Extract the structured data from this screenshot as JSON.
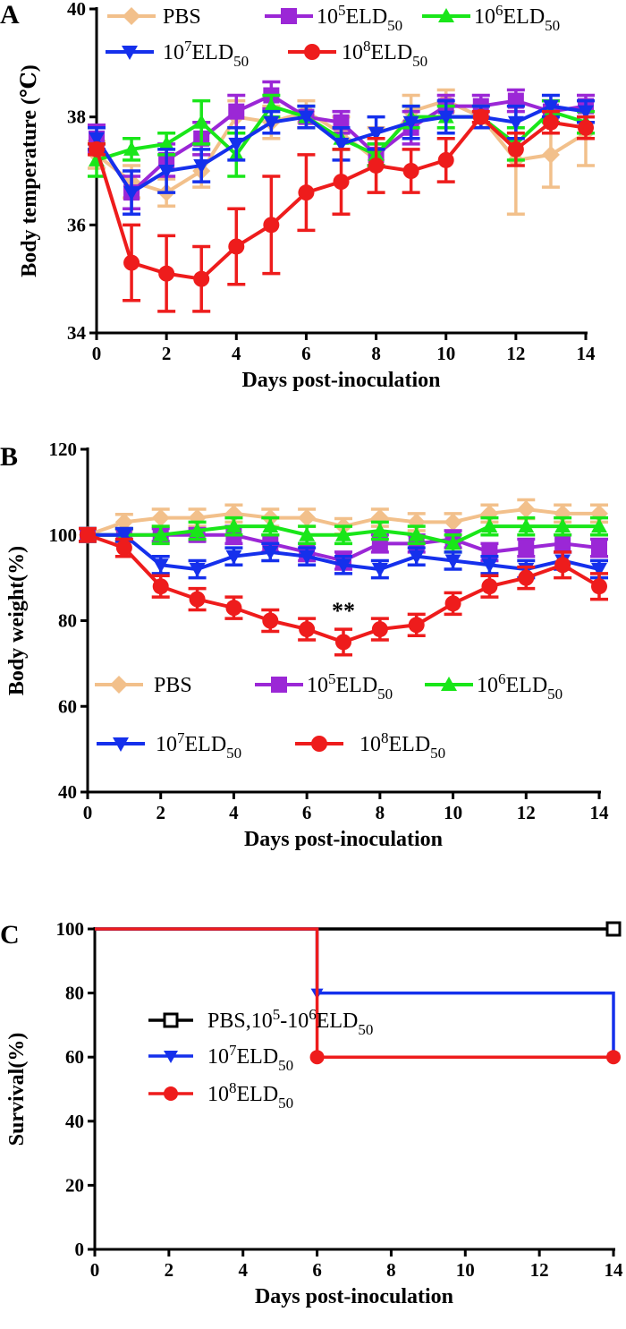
{
  "colors": {
    "PBS": "#f2c08b",
    "E5": "#9b27d6",
    "E6": "#19e619",
    "E7": "#1530ec",
    "E8": "#ee1c1c",
    "black": "#000000"
  },
  "series_labels": [
    {
      "key": "PBS",
      "pre": "PBS",
      "sup": "",
      "mid": "",
      "sub": ""
    },
    {
      "key": "E5",
      "pre": "10",
      "sup": "5",
      "mid": "ELD",
      "sub": "50"
    },
    {
      "key": "E6",
      "pre": "10",
      "sup": "6",
      "mid": "ELD",
      "sub": "50"
    },
    {
      "key": "E7",
      "pre": "10",
      "sup": "7",
      "mid": "ELD",
      "sub": "50"
    },
    {
      "key": "E8",
      "pre": "10",
      "sup": "8",
      "mid": "ELD",
      "sub": "50"
    }
  ],
  "chart_data": [
    {
      "panel": "A",
      "type": "line",
      "title": "",
      "xlabel": "Days post-inoculation",
      "ylabel": "Body temperature (℃)",
      "xlim": [
        0,
        14
      ],
      "ylim": [
        34,
        40
      ],
      "xticks": [
        0,
        2,
        4,
        6,
        8,
        10,
        12,
        14
      ],
      "yticks": [
        34,
        36,
        38,
        40
      ],
      "x": [
        0,
        1,
        2,
        3,
        4,
        5,
        6,
        7,
        8,
        9,
        10,
        11,
        12,
        13,
        14
      ],
      "series": [
        {
          "key": "PBS",
          "marker": "diamond",
          "values": [
            37.3,
            36.8,
            36.6,
            37.0,
            38.0,
            37.9,
            38.1,
            37.7,
            37.2,
            38.1,
            38.3,
            38.0,
            37.2,
            37.3,
            37.7
          ],
          "err": [
            0.25,
            0.3,
            0.25,
            0.3,
            0.3,
            0.3,
            0.2,
            0.3,
            0.6,
            0.3,
            0.2,
            0.2,
            1.0,
            0.6,
            0.6
          ]
        },
        {
          "key": "E5",
          "marker": "square",
          "values": [
            37.6,
            36.6,
            37.2,
            37.6,
            38.1,
            38.4,
            38.0,
            37.9,
            37.3,
            37.8,
            38.2,
            38.2,
            38.3,
            38.1,
            38.2
          ],
          "err": [
            0.25,
            0.3,
            0.3,
            0.3,
            0.3,
            0.25,
            0.2,
            0.2,
            0.2,
            0.3,
            0.2,
            0.2,
            0.2,
            0.2,
            0.2
          ]
        },
        {
          "key": "E6",
          "marker": "triangle-up",
          "values": [
            37.2,
            37.4,
            37.5,
            37.9,
            37.3,
            38.2,
            38.0,
            37.6,
            37.3,
            38.0,
            38.0,
            38.0,
            37.5,
            38.1,
            37.9
          ],
          "err": [
            0.3,
            0.2,
            0.2,
            0.4,
            0.4,
            0.2,
            0.2,
            0.2,
            0.2,
            0.2,
            0.2,
            0.2,
            0.3,
            0.2,
            0.2
          ]
        },
        {
          "key": "E7",
          "marker": "triangle-down",
          "values": [
            37.6,
            36.6,
            37.0,
            37.1,
            37.5,
            37.9,
            38.0,
            37.5,
            37.7,
            37.9,
            38.0,
            38.0,
            37.9,
            38.2,
            38.1
          ],
          "err": [
            0.2,
            0.4,
            0.4,
            0.3,
            0.3,
            0.2,
            0.2,
            0.3,
            0.3,
            0.3,
            0.3,
            0.2,
            0.3,
            0.2,
            0.2
          ]
        },
        {
          "key": "E8",
          "marker": "circle",
          "values": [
            37.4,
            35.3,
            35.1,
            35.0,
            35.6,
            36.0,
            36.6,
            36.8,
            37.1,
            37.0,
            37.2,
            38.0,
            37.4,
            37.9,
            37.8
          ],
          "err": [
            0.1,
            0.7,
            0.7,
            0.6,
            0.7,
            0.9,
            0.7,
            0.6,
            0.5,
            0.4,
            0.4,
            0.1,
            0.3,
            0.2,
            0.2
          ]
        }
      ],
      "legend": "top, two rows"
    },
    {
      "panel": "B",
      "type": "line",
      "title": "",
      "xlabel": "Days post-inoculation",
      "ylabel": "Body weight(%)",
      "xlim": [
        0,
        14
      ],
      "ylim": [
        40,
        120
      ],
      "xticks": [
        0,
        2,
        4,
        6,
        8,
        10,
        12,
        14
      ],
      "yticks": [
        40,
        60,
        80,
        100,
        120
      ],
      "x": [
        0,
        1,
        2,
        3,
        4,
        5,
        6,
        7,
        8,
        9,
        10,
        11,
        12,
        13,
        14
      ],
      "annotation": {
        "text": "**",
        "x": 7
      },
      "series": [
        {
          "key": "PBS",
          "marker": "diamond",
          "values": [
            100,
            103,
            104,
            104,
            105,
            104,
            104,
            102,
            104,
            103,
            103,
            105,
            106,
            105,
            105
          ],
          "err": [
            1.5,
            1.8,
            2.0,
            2.0,
            2.0,
            2.0,
            2.0,
            1.8,
            2.0,
            2.0,
            2.0,
            2.0,
            2.2,
            2.0,
            2.0
          ]
        },
        {
          "key": "E5",
          "marker": "square",
          "values": [
            100,
            100,
            100,
            100,
            100,
            98,
            96,
            94,
            98,
            98,
            99,
            96,
            97,
            98,
            97
          ],
          "err": [
            1.5,
            1.5,
            1.5,
            1.5,
            2.0,
            2.0,
            2.0,
            2.0,
            2.0,
            2.0,
            2.0,
            2.0,
            2.0,
            2.0,
            2.0
          ]
        },
        {
          "key": "E6",
          "marker": "triangle-up",
          "values": [
            100,
            100,
            100,
            101,
            102,
            102,
            100,
            100,
            101,
            100,
            98,
            102,
            102,
            102,
            102
          ],
          "err": [
            1.5,
            1.5,
            2.0,
            2.0,
            2.0,
            2.0,
            2.0,
            2.0,
            2.0,
            2.0,
            2.0,
            2.0,
            2.0,
            2.0,
            2.0
          ]
        },
        {
          "key": "E7",
          "marker": "triangle-down",
          "values": [
            100,
            100,
            93,
            92,
            95,
            96,
            95,
            93,
            92,
            95,
            94,
            93,
            92,
            94,
            92
          ],
          "err": [
            1.5,
            1.5,
            2.0,
            2.0,
            2.0,
            2.0,
            2.0,
            2.0,
            2.0,
            2.0,
            2.0,
            2.0,
            2.0,
            2.0,
            2.0
          ]
        },
        {
          "key": "E8",
          "marker": "circle",
          "values": [
            100,
            97,
            88,
            85,
            83,
            80,
            78,
            75,
            78,
            79,
            84,
            88,
            90,
            93,
            88
          ],
          "err": [
            1.5,
            2.0,
            2.5,
            2.5,
            2.5,
            2.5,
            2.5,
            3.0,
            2.5,
            2.5,
            2.5,
            2.5,
            2.5,
            3.0,
            3.0
          ]
        }
      ],
      "legend": "inside plot, lower-left, two rows"
    },
    {
      "panel": "C",
      "type": "line",
      "subtype": "step",
      "xlabel": "Days post-inoculation",
      "ylabel": "Survival(%)",
      "xlim": [
        0,
        14
      ],
      "ylim": [
        0,
        100
      ],
      "xticks": [
        0,
        2,
        4,
        6,
        8,
        10,
        12,
        14
      ],
      "yticks": [
        0,
        20,
        40,
        60,
        80,
        100
      ],
      "series": [
        {
          "key": "black",
          "label": {
            "pre": "PBS,10",
            "sup": "5",
            "mid": "-10",
            "sup2": "6",
            "post": "ELD",
            "sub": "50"
          },
          "marker": "open-square",
          "steps": [
            [
              0,
              100
            ],
            [
              14,
              100
            ]
          ]
        },
        {
          "key": "E7",
          "label": {
            "pre": "10",
            "sup": "7",
            "post": "ELD",
            "sub": "50"
          },
          "marker": "triangle-down",
          "steps": [
            [
              0,
              100
            ],
            [
              6,
              100
            ],
            [
              6,
              80
            ],
            [
              14,
              80
            ],
            [
              14,
              60
            ]
          ]
        },
        {
          "key": "E8",
          "label": {
            "pre": "10",
            "sup": "8",
            "post": "ELD",
            "sub": "50"
          },
          "marker": "circle",
          "steps": [
            [
              0,
              100
            ],
            [
              6,
              100
            ],
            [
              6,
              60
            ],
            [
              14,
              60
            ]
          ]
        }
      ],
      "legend": "inside plot, lower-left, stacked"
    }
  ]
}
